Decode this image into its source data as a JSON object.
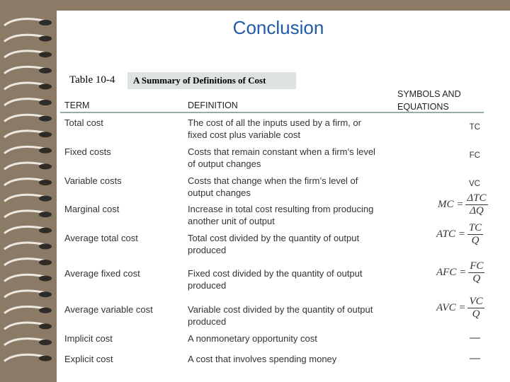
{
  "title": "Conclusion",
  "table": {
    "caption_label": "Table 10-4",
    "caption_title": "A Summary of Definitions of Cost",
    "headers": [
      "TERM",
      "DEFINITION",
      "SYMBOLS AND EQUATIONS"
    ],
    "rows": [
      {
        "term": "Total cost",
        "definition": "The cost of all the inputs used by a firm, or fixed cost plus variable cost",
        "symbol": "TC"
      },
      {
        "term": "Fixed costs",
        "definition": "Costs that remain constant when a firm’s level of output changes",
        "symbol": "FC"
      },
      {
        "term": "Variable costs",
        "definition": "Costs that change when the firm’s level of output changes",
        "symbol": "VC"
      },
      {
        "term": "Marginal cost",
        "definition": "Increase in total cost resulting from producing another unit of output",
        "symbol": {
          "lhs": "MC =",
          "num": "ΔTC",
          "den": "ΔQ"
        }
      },
      {
        "term": "Average total cost",
        "definition": "Total cost divided by the quantity of output produced",
        "symbol": {
          "lhs": "ATC =",
          "num": "TC",
          "den": "Q"
        }
      },
      {
        "term": "Average fixed cost",
        "definition": "Fixed cost divided by the quantity of output produced",
        "symbol": {
          "lhs": "AFC =",
          "num": "FC",
          "den": "Q"
        }
      },
      {
        "term": "Average variable cost",
        "definition": "Variable cost divided by the quantity of output produced",
        "symbol": {
          "lhs": "AVC =",
          "num": "VC",
          "den": "Q"
        }
      },
      {
        "term": "Implicit cost",
        "definition": "A nonmonetary opportunity cost",
        "symbol": "—"
      },
      {
        "term": "Explicit cost",
        "definition": "A cost that involves spending money",
        "symbol": "—"
      }
    ]
  }
}
